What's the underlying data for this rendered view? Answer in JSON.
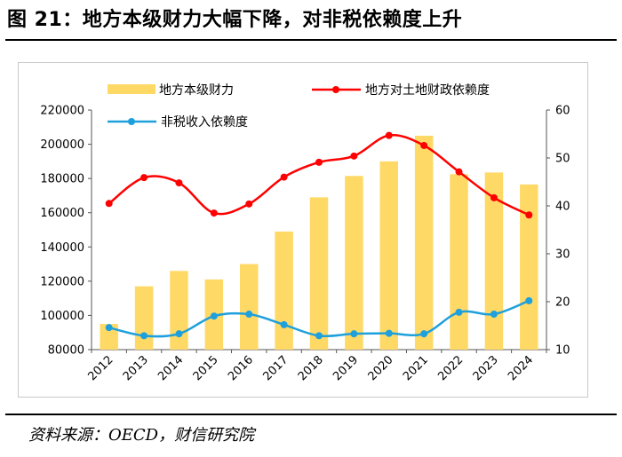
{
  "figure": {
    "title": "图 21：地方本级财力大幅下降，对非税依赖度上升",
    "source": "资料来源：OECD，财信研究院"
  },
  "chart_data": {
    "type": "bar+line",
    "categories": [
      "2012",
      "2013",
      "2014",
      "2015",
      "2016",
      "2017",
      "2018",
      "2019",
      "2020",
      "2021",
      "2022",
      "2023",
      "2024"
    ],
    "series": [
      {
        "name": "地方本级财力",
        "type": "bar",
        "axis": "left",
        "color": "#FFD966",
        "values": [
          95000,
          117000,
          126000,
          121000,
          130000,
          149000,
          169000,
          181500,
          190000,
          205000,
          182500,
          183500,
          176500
        ]
      },
      {
        "name": "地方对土地财政依赖度",
        "type": "line",
        "axis": "right",
        "color": "#FF0000",
        "values": [
          40.5,
          45.9,
          44.8,
          38.5,
          40.4,
          46.0,
          49.1,
          50.4,
          54.7,
          52.6,
          47.1,
          41.7,
          38.1
        ]
      },
      {
        "name": "非税收入依赖度",
        "type": "line",
        "axis": "right",
        "color": "#1EA0DC",
        "values": [
          14.6,
          12.9,
          13.3,
          17.0,
          17.4,
          15.2,
          12.9,
          13.3,
          13.4,
          13.3,
          17.8,
          17.4,
          20.2
        ]
      }
    ],
    "y_left": {
      "min": 80000,
      "max": 220000,
      "step": 20000,
      "ticks": [
        "80000",
        "100000",
        "120000",
        "140000",
        "160000",
        "180000",
        "200000",
        "220000"
      ]
    },
    "y_right": {
      "min": 10,
      "max": 60,
      "step": 10,
      "ticks": [
        "10",
        "20",
        "30",
        "40",
        "50",
        "60"
      ]
    },
    "legend": {
      "placement": "top-left, two rows"
    },
    "grid": false
  }
}
